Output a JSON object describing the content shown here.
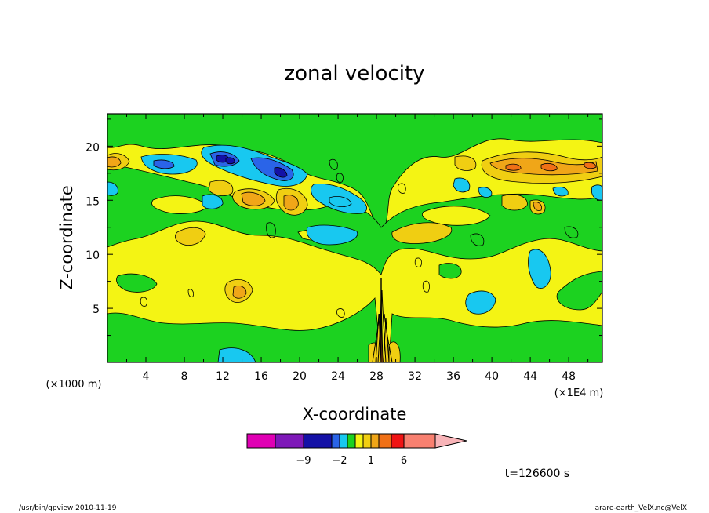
{
  "chart_data": {
    "type": "heatmap",
    "title": "zonal velocity",
    "xlabel": "X-coordinate",
    "ylabel": "Z-coordinate",
    "x_unit": "(×1E4 m)",
    "y_unit": "(×1000 m)",
    "xlim": [
      0,
      51.5
    ],
    "ylim": [
      0,
      23
    ],
    "x_ticks": [
      "4",
      "8",
      "12",
      "16",
      "20",
      "24",
      "28",
      "32",
      "36",
      "40",
      "44",
      "48"
    ],
    "y_ticks": [
      "5",
      "10",
      "15",
      "20"
    ],
    "colorbar": {
      "levels": [
        -14,
        -9,
        -5,
        -2,
        -1,
        -0.5,
        0.5,
        1,
        2,
        3,
        6,
        9,
        13
      ],
      "colors": [
        "#e000b4",
        "#7e18b8",
        "#1411a6",
        "#2a64e8",
        "#18c8f0",
        "#1cd220",
        "#f4f414",
        "#f0ce12",
        "#f0a618",
        "#f07016",
        "#f01414",
        "#f88070",
        "#f8b4b8"
      ],
      "tick_labels": [
        {
          "value": -9,
          "label": "−9"
        },
        {
          "value": -2,
          "label": "−2"
        },
        {
          "value": 1,
          "label": "1"
        },
        {
          "value": 6,
          "label": "6"
        }
      ]
    },
    "annotation": "t=126600 s"
  },
  "footer": {
    "left": "/usr/bin/gpview   2010-11-19",
    "right": "arare-earth_VelX.nc@VelX"
  }
}
